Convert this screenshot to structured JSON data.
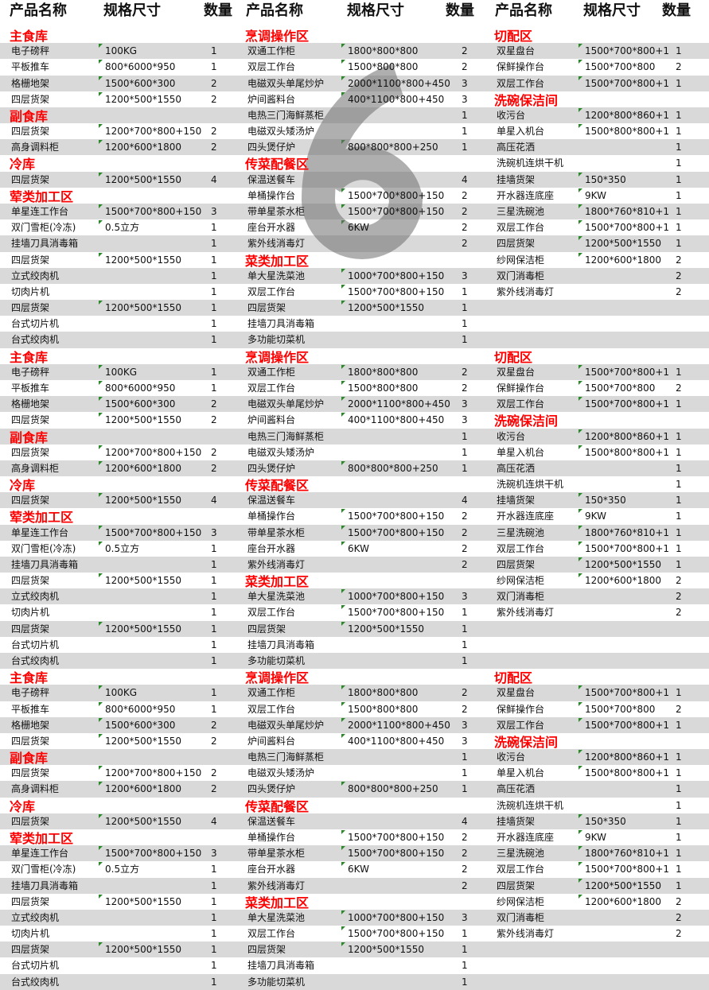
{
  "header": {
    "name": "产品名称",
    "size": "规格尺寸",
    "qty": "数量"
  },
  "watermark": "6",
  "colors": {
    "section": "#ff0000",
    "stripe": "#d9d9d9",
    "marker": "#2a8a2a"
  },
  "blocks": [
    {
      "left": [
        [
          "主食库"
        ],
        [
          "电子磅秤",
          "100KG",
          "1"
        ],
        [
          "平板推车",
          "800*6000*950",
          "1"
        ],
        [
          "格栅地架",
          "1500*600*300",
          "2"
        ],
        [
          "四层货架",
          "1200*500*1550",
          "2"
        ],
        [
          "副食库"
        ],
        [
          "四层货架",
          "1200*700*800+150",
          "2"
        ],
        [
          "高身调料柜",
          "1200*600*1800",
          "2"
        ],
        [
          "冷库"
        ],
        [
          "四层货架",
          "1200*500*1550",
          "4"
        ],
        [
          "荤类加工区"
        ],
        [
          "单星连工作台",
          "1500*700*800+150",
          "3"
        ],
        [
          "双门雪柜(冷冻)",
          "0.5立方",
          "1"
        ],
        [
          "挂墙刀具消毒箱",
          "",
          "1"
        ],
        [
          "四层货架",
          "1200*500*1550",
          "1"
        ],
        [
          "立式绞肉机",
          "",
          "1"
        ],
        [
          "切肉片机",
          "",
          "1"
        ],
        [
          "四层货架",
          "1200*500*1550",
          "1"
        ],
        [
          "台式切片机",
          "",
          "1"
        ],
        [
          "台式绞肉机",
          "",
          "1"
        ]
      ],
      "middle": [
        [
          "烹调操作区"
        ],
        [
          "双通工作柜",
          "1800*800*800",
          "2"
        ],
        [
          "双层工作台",
          "1500*800*800",
          "2"
        ],
        [
          "电磁双头单尾炒炉",
          "2000*1100*800+450",
          "3"
        ],
        [
          "炉间酱料台",
          "400*1100*800+450",
          "3"
        ],
        [
          "电热三门海鲜蒸柜",
          "",
          "1"
        ],
        [
          "电磁双头矮汤炉",
          "",
          "1"
        ],
        [
          "四头煲仔炉",
          "800*800*800+250",
          "1"
        ],
        [
          "传菜配餐区"
        ],
        [
          "保温送餐车",
          "",
          "4"
        ],
        [
          "单桶操作台",
          "1500*700*800+150",
          "2"
        ],
        [
          "带单星茶水柜",
          "1500*700*800+150",
          "2"
        ],
        [
          "座台开水器",
          "6KW",
          "2"
        ],
        [
          "紫外线消毒灯",
          "",
          "2"
        ],
        [
          "菜类加工区"
        ],
        [
          "单大星洗菜池",
          "1000*700*800+150",
          "3"
        ],
        [
          "双层工作台",
          "1500*700*800+150",
          "1"
        ],
        [
          "四层货架",
          "1200*500*1550",
          "1"
        ],
        [
          "挂墙刀具消毒箱",
          "",
          "1"
        ],
        [
          "多功能切菜机",
          "",
          "1"
        ]
      ],
      "right": [
        [
          "切配区"
        ],
        [
          "双星盘台",
          "1500*700*800+1",
          "1"
        ],
        [
          "保鲜操作台",
          "1500*700*800",
          "2"
        ],
        [
          "双层工作台",
          "1500*700*800+1",
          "1"
        ],
        [
          "洗碗保洁间"
        ],
        [
          "收污台",
          "1200*800*860+1",
          "1"
        ],
        [
          "单星入机台",
          "1500*800*800+1",
          "1"
        ],
        [
          "高压花洒",
          "",
          "1"
        ],
        [
          "洗碗机连烘干机",
          "",
          "1"
        ],
        [
          "挂墙货架",
          "150*350",
          "1"
        ],
        [
          "开水器连底座",
          "9KW",
          "1"
        ],
        [
          "三星洗碗池",
          "1800*760*810+1",
          "1"
        ],
        [
          "双层工作台",
          "1500*700*800+1",
          "1"
        ],
        [
          "四层货架",
          "1200*500*1550",
          "1"
        ],
        [
          "纱网保洁柜",
          "1200*600*1800",
          "2"
        ],
        [
          "双门消毒柜",
          "",
          "2"
        ],
        [
          "紫外线消毒灯",
          "",
          "2"
        ],
        [],
        [],
        []
      ]
    },
    {
      "left": [
        [
          "主食库"
        ],
        [
          "电子磅秤",
          "100KG",
          "1"
        ],
        [
          "平板推车",
          "800*6000*950",
          "1"
        ],
        [
          "格栅地架",
          "1500*600*300",
          "2"
        ],
        [
          "四层货架",
          "1200*500*1550",
          "2"
        ],
        [
          "副食库"
        ],
        [
          "四层货架",
          "1200*700*800+150",
          "2"
        ],
        [
          "高身调料柜",
          "1200*600*1800",
          "2"
        ],
        [
          "冷库"
        ],
        [
          "四层货架",
          "1200*500*1550",
          "4"
        ],
        [
          "荤类加工区"
        ],
        [
          "单星连工作台",
          "1500*700*800+150",
          "3"
        ],
        [
          "双门雪柜(冷冻)",
          "0.5立方",
          "1"
        ],
        [
          "挂墙刀具消毒箱",
          "",
          "1"
        ],
        [
          "四层货架",
          "1200*500*1550",
          "1"
        ],
        [
          "立式绞肉机",
          "",
          "1"
        ],
        [
          "切肉片机",
          "",
          "1"
        ],
        [
          "四层货架",
          "1200*500*1550",
          "1"
        ],
        [
          "台式切片机",
          "",
          "1"
        ],
        [
          "台式绞肉机",
          "",
          "1"
        ]
      ],
      "middle": [
        [
          "烹调操作区"
        ],
        [
          "双通工作柜",
          "1800*800*800",
          "2"
        ],
        [
          "双层工作台",
          "1500*800*800",
          "2"
        ],
        [
          "电磁双头单尾炒炉",
          "2000*1100*800+450",
          "3"
        ],
        [
          "炉间酱料台",
          "400*1100*800+450",
          "3"
        ],
        [
          "电热三门海鲜蒸柜",
          "",
          "1"
        ],
        [
          "电磁双头矮汤炉",
          "",
          "1"
        ],
        [
          "四头煲仔炉",
          "800*800*800+250",
          "1"
        ],
        [
          "传菜配餐区"
        ],
        [
          "保温送餐车",
          "",
          "4"
        ],
        [
          "单桶操作台",
          "1500*700*800+150",
          "2"
        ],
        [
          "带单星茶水柜",
          "1500*700*800+150",
          "2"
        ],
        [
          "座台开水器",
          "6KW",
          "2"
        ],
        [
          "紫外线消毒灯",
          "",
          "2"
        ],
        [
          "菜类加工区"
        ],
        [
          "单大星洗菜池",
          "1000*700*800+150",
          "3"
        ],
        [
          "双层工作台",
          "1500*700*800+150",
          "1"
        ],
        [
          "四层货架",
          "1200*500*1550",
          "1"
        ],
        [
          "挂墙刀具消毒箱",
          "",
          "1"
        ],
        [
          "多功能切菜机",
          "",
          "1"
        ]
      ],
      "right": [
        [
          "切配区"
        ],
        [
          "双星盘台",
          "1500*700*800+1",
          "1"
        ],
        [
          "保鲜操作台",
          "1500*700*800",
          "2"
        ],
        [
          "双层工作台",
          "1500*700*800+1",
          "1"
        ],
        [
          "洗碗保洁间"
        ],
        [
          "收污台",
          "1200*800*860+1",
          "1"
        ],
        [
          "单星入机台",
          "1500*800*800+1",
          "1"
        ],
        [
          "高压花洒",
          "",
          "1"
        ],
        [
          "洗碗机连烘干机",
          "",
          "1"
        ],
        [
          "挂墙货架",
          "150*350",
          "1"
        ],
        [
          "开水器连底座",
          "9KW",
          "1"
        ],
        [
          "三星洗碗池",
          "1800*760*810+1",
          "1"
        ],
        [
          "双层工作台",
          "1500*700*800+1",
          "1"
        ],
        [
          "四层货架",
          "1200*500*1550",
          "1"
        ],
        [
          "纱网保洁柜",
          "1200*600*1800",
          "2"
        ],
        [
          "双门消毒柜",
          "",
          "2"
        ],
        [
          "紫外线消毒灯",
          "",
          "2"
        ],
        [],
        [],
        []
      ]
    },
    {
      "left": [
        [
          "主食库"
        ],
        [
          "电子磅秤",
          "100KG",
          "1"
        ],
        [
          "平板推车",
          "800*6000*950",
          "1"
        ],
        [
          "格栅地架",
          "1500*600*300",
          "2"
        ],
        [
          "四层货架",
          "1200*500*1550",
          "2"
        ],
        [
          "副食库"
        ],
        [
          "四层货架",
          "1200*700*800+150",
          "2"
        ],
        [
          "高身调料柜",
          "1200*600*1800",
          "2"
        ],
        [
          "冷库"
        ],
        [
          "四层货架",
          "1200*500*1550",
          "4"
        ],
        [
          "荤类加工区"
        ],
        [
          "单星连工作台",
          "1500*700*800+150",
          "3"
        ],
        [
          "双门雪柜(冷冻)",
          "0.5立方",
          "1"
        ],
        [
          "挂墙刀具消毒箱",
          "",
          "1"
        ],
        [
          "四层货架",
          "1200*500*1550",
          "1"
        ],
        [
          "立式绞肉机",
          "",
          "1"
        ],
        [
          "切肉片机",
          "",
          "1"
        ],
        [
          "四层货架",
          "1200*500*1550",
          "1"
        ],
        [
          "台式切片机",
          "",
          "1"
        ],
        [
          "台式绞肉机",
          "",
          "1"
        ]
      ],
      "middle": [
        [
          "烹调操作区"
        ],
        [
          "双通工作柜",
          "1800*800*800",
          "2"
        ],
        [
          "双层工作台",
          "1500*800*800",
          "2"
        ],
        [
          "电磁双头单尾炒炉",
          "2000*1100*800+450",
          "3"
        ],
        [
          "炉间酱料台",
          "400*1100*800+450",
          "3"
        ],
        [
          "电热三门海鲜蒸柜",
          "",
          "1"
        ],
        [
          "电磁双头矮汤炉",
          "",
          "1"
        ],
        [
          "四头煲仔炉",
          "800*800*800+250",
          "1"
        ],
        [
          "传菜配餐区"
        ],
        [
          "保温送餐车",
          "",
          "4"
        ],
        [
          "单桶操作台",
          "1500*700*800+150",
          "2"
        ],
        [
          "带单星茶水柜",
          "1500*700*800+150",
          "2"
        ],
        [
          "座台开水器",
          "6KW",
          "2"
        ],
        [
          "紫外线消毒灯",
          "",
          "2"
        ],
        [
          "菜类加工区"
        ],
        [
          "单大星洗菜池",
          "1000*700*800+150",
          "3"
        ],
        [
          "双层工作台",
          "1500*700*800+150",
          "1"
        ],
        [
          "四层货架",
          "1200*500*1550",
          "1"
        ],
        [
          "挂墙刀具消毒箱",
          "",
          "1"
        ],
        [
          "多功能切菜机",
          "",
          "1"
        ]
      ],
      "right": [
        [
          "切配区"
        ],
        [
          "双星盘台",
          "1500*700*800+1",
          "1"
        ],
        [
          "保鲜操作台",
          "1500*700*800",
          "2"
        ],
        [
          "双层工作台",
          "1500*700*800+1",
          "1"
        ],
        [
          "洗碗保洁间"
        ],
        [
          "收污台",
          "1200*800*860+1",
          "1"
        ],
        [
          "单星入机台",
          "1500*800*800+1",
          "1"
        ],
        [
          "高压花洒",
          "",
          "1"
        ],
        [
          "洗碗机连烘干机",
          "",
          "1"
        ],
        [
          "挂墙货架",
          "150*350",
          "1"
        ],
        [
          "开水器连底座",
          "9KW",
          "1"
        ],
        [
          "三星洗碗池",
          "1800*760*810+1",
          "1"
        ],
        [
          "双层工作台",
          "1500*700*800+1",
          "1"
        ],
        [
          "四层货架",
          "1200*500*1550",
          "1"
        ],
        [
          "纱网保洁柜",
          "1200*600*1800",
          "2"
        ],
        [
          "双门消毒柜",
          "",
          "2"
        ],
        [
          "紫外线消毒灯",
          "",
          "2"
        ],
        [],
        [],
        []
      ]
    }
  ]
}
